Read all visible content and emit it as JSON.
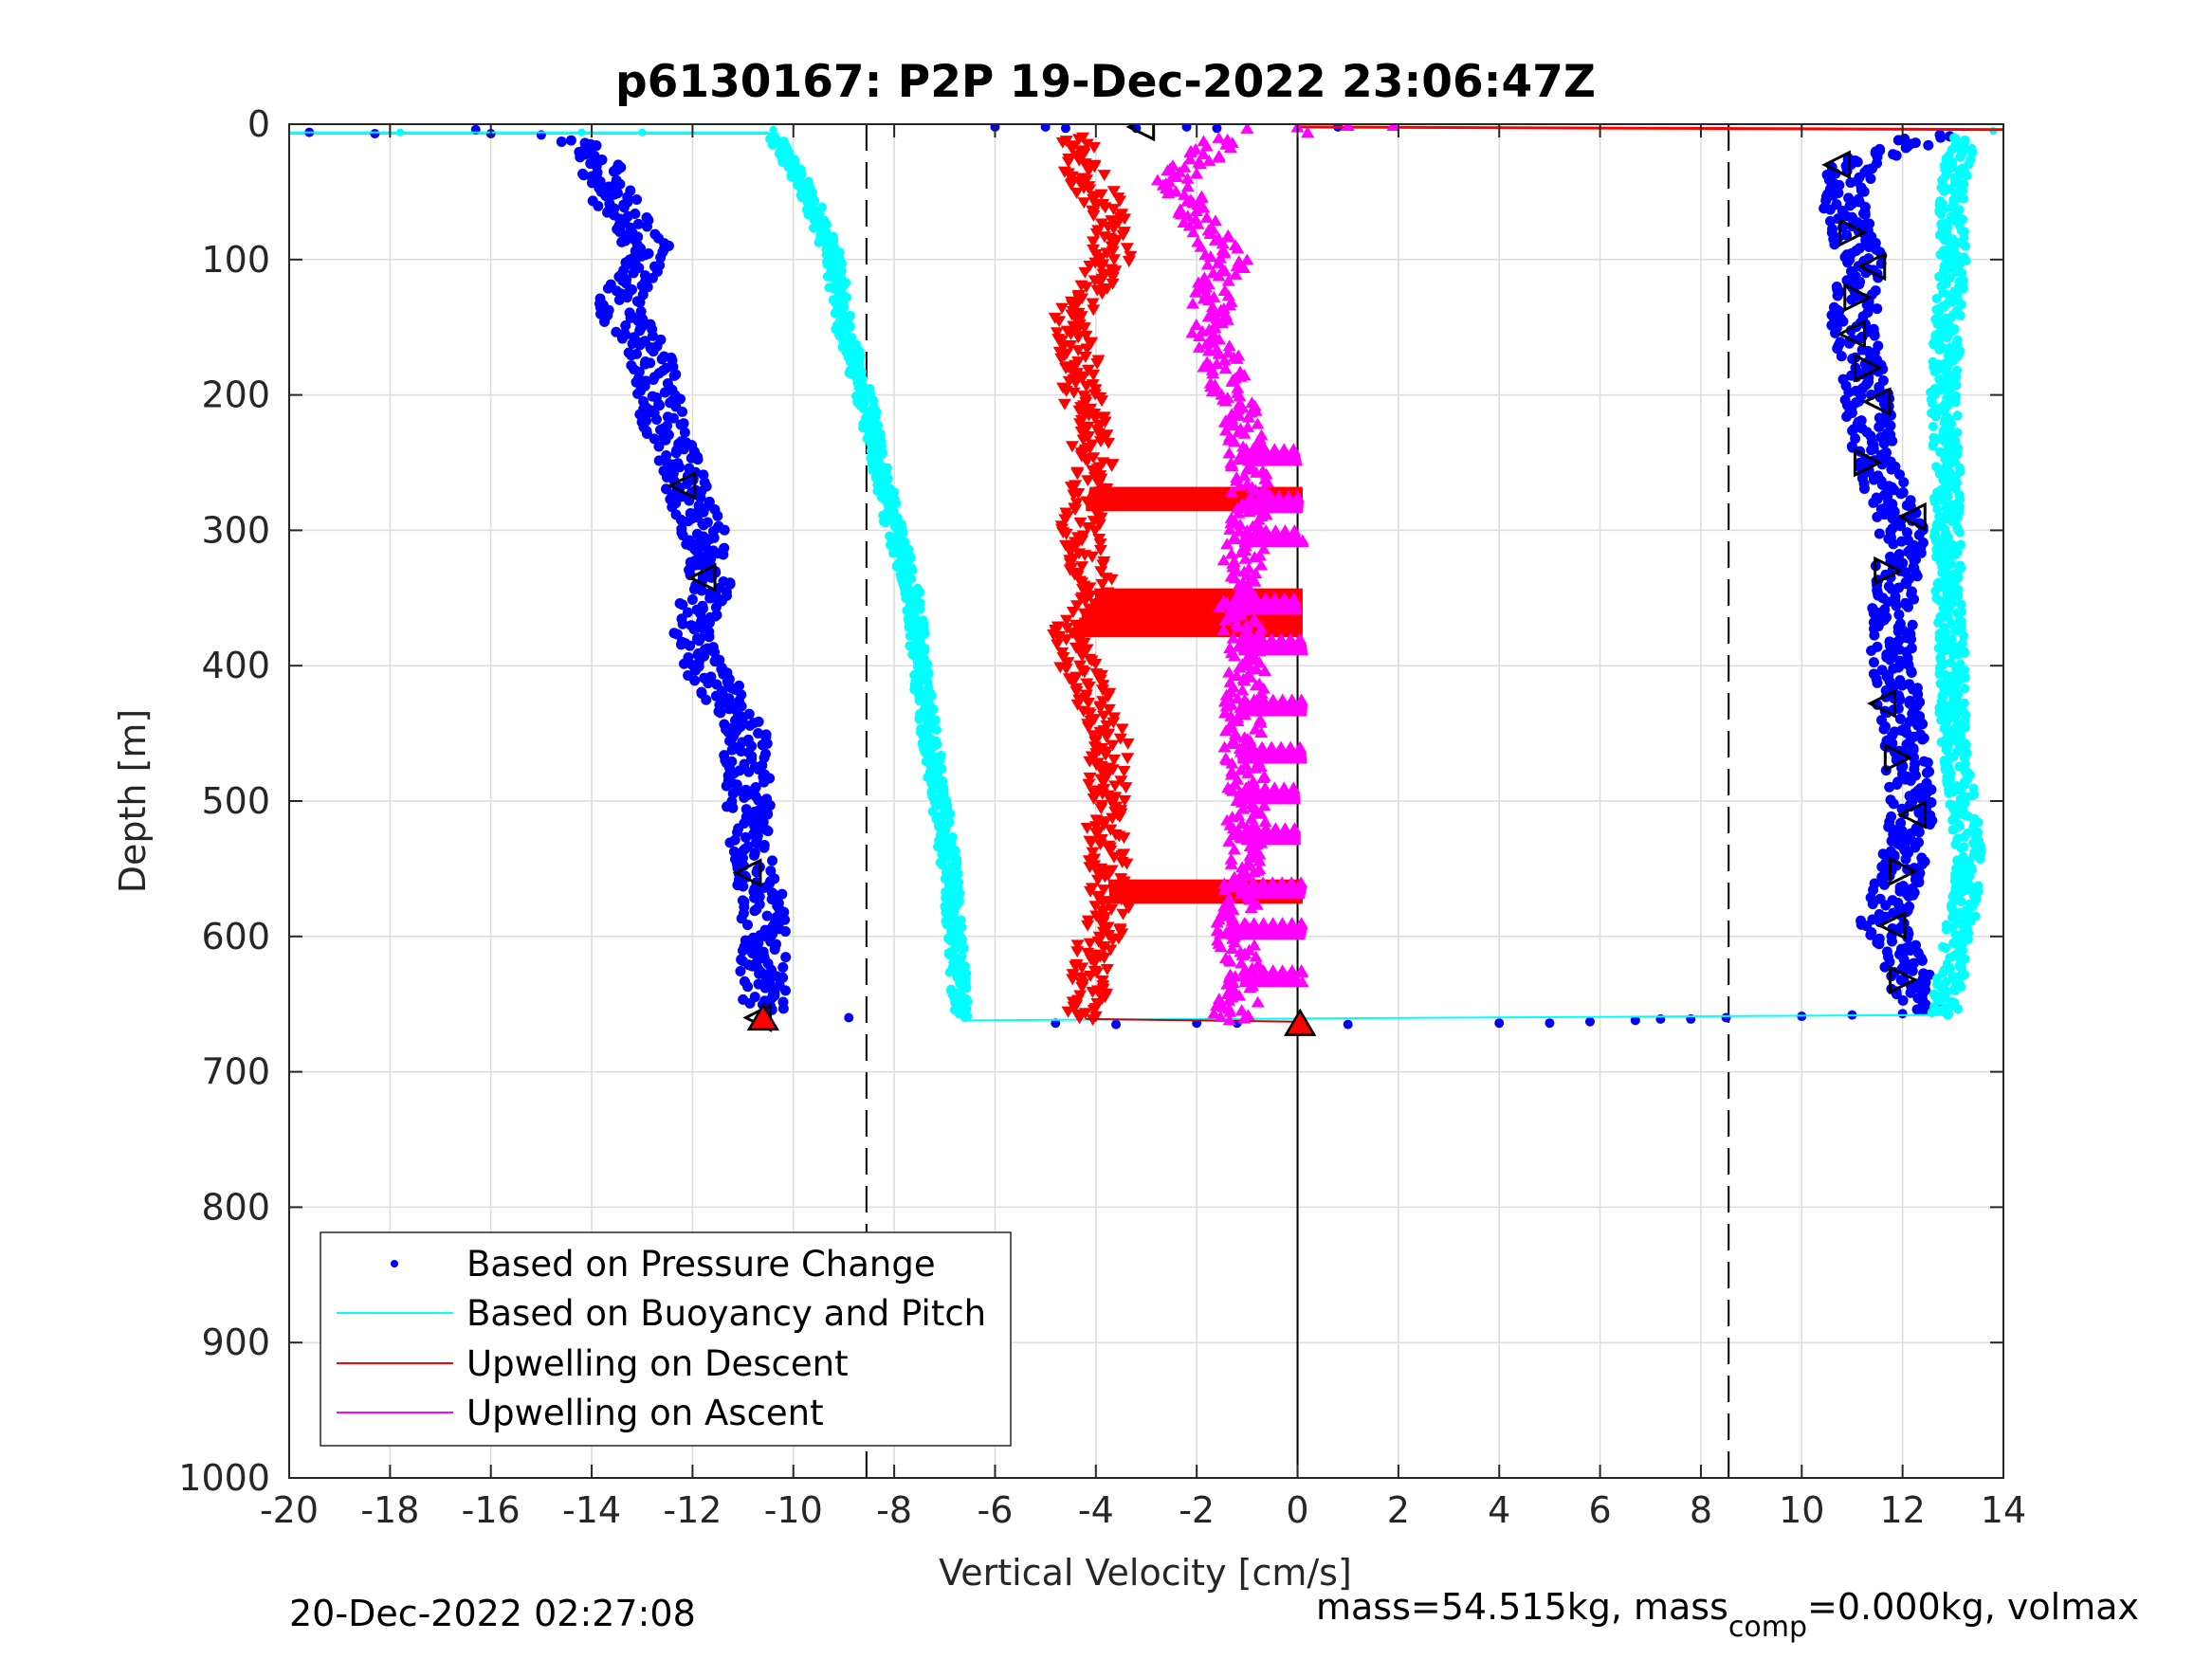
{
  "chart_data": {
    "type": "scatter",
    "title": "p6130167: P2P 19-Dec-2022 23:06:47Z",
    "xlabel": "Vertical Velocity [cm/s]",
    "ylabel": "Depth [m]",
    "xlim": [
      -20,
      14
    ],
    "ylim": [
      0,
      1000
    ],
    "y_reversed": true,
    "grid": true,
    "legend_position": "bottom-left",
    "x_ticks": [
      -20,
      -18,
      -16,
      -14,
      -12,
      -10,
      -8,
      -6,
      -4,
      -2,
      0,
      2,
      4,
      6,
      8,
      10,
      12,
      14
    ],
    "y_ticks": [
      0,
      100,
      200,
      300,
      400,
      500,
      600,
      700,
      800,
      900,
      1000
    ],
    "reference_lines": {
      "dashed_x": [
        -8.55,
        8.55
      ],
      "solid_x": 0
    },
    "series": [
      {
        "name": "Based on Pressure Change",
        "color": "#0000ff",
        "marker": "dot",
        "descent_profile": [
          [
            -10.3,
            5
          ],
          [
            -14.5,
            12
          ],
          [
            -13.8,
            30
          ],
          [
            -13.5,
            60
          ],
          [
            -12.8,
            95
          ],
          [
            -13.5,
            135
          ],
          [
            -12.8,
            175
          ],
          [
            -12.6,
            215
          ],
          [
            -12.2,
            260
          ],
          [
            -11.8,
            300
          ],
          [
            -11.6,
            335
          ],
          [
            -12.0,
            370
          ],
          [
            -11.8,
            400
          ],
          [
            -11.0,
            440
          ],
          [
            -10.9,
            490
          ],
          [
            -10.8,
            540
          ],
          [
            -10.6,
            580
          ],
          [
            -10.6,
            620
          ],
          [
            -10.6,
            660
          ]
        ],
        "ascent_profile": [
          [
            12.5,
            10
          ],
          [
            11.0,
            30
          ],
          [
            10.8,
            60
          ],
          [
            11.2,
            100
          ],
          [
            11.0,
            150
          ],
          [
            11.3,
            200
          ],
          [
            11.4,
            250
          ],
          [
            12.0,
            300
          ],
          [
            11.8,
            350
          ],
          [
            11.8,
            400
          ],
          [
            12.0,
            450
          ],
          [
            12.2,
            500
          ],
          [
            12.0,
            550
          ],
          [
            11.6,
            590
          ],
          [
            12.0,
            620
          ],
          [
            12.3,
            650
          ]
        ],
        "surface_points": [
          [
            -19.6,
            6
          ],
          [
            -18.3,
            7
          ],
          [
            -16.3,
            4
          ],
          [
            -16.0,
            7
          ],
          [
            -15.0,
            8
          ],
          [
            -6.0,
            2
          ],
          [
            -5.0,
            2
          ],
          [
            -4.6,
            3
          ],
          [
            -3.2,
            3
          ],
          [
            -2.2,
            2
          ],
          [
            -1.6,
            3
          ],
          [
            0.8,
            2
          ]
        ],
        "bottom_points": [
          [
            -8.9,
            660
          ],
          [
            -4.8,
            664
          ],
          [
            -3.6,
            665
          ],
          [
            -2.0,
            664
          ],
          [
            -1.2,
            664
          ],
          [
            1.0,
            665
          ],
          [
            4.0,
            664
          ],
          [
            5.0,
            664
          ],
          [
            5.8,
            663
          ],
          [
            6.7,
            662
          ],
          [
            7.2,
            661
          ],
          [
            7.8,
            661
          ],
          [
            8.5,
            660
          ],
          [
            10.0,
            659
          ],
          [
            11.0,
            658
          ],
          [
            12.0,
            657
          ]
        ]
      },
      {
        "name": "Based on Buoyancy and Pitch",
        "color": "#00ffff",
        "marker": "line+dot",
        "descent_profile": [
          [
            -20,
            6
          ],
          [
            -10.5,
            6
          ],
          [
            -10.2,
            20
          ],
          [
            -9.6,
            60
          ],
          [
            -9.2,
            100
          ],
          [
            -9.0,
            150
          ],
          [
            -8.6,
            200
          ],
          [
            -8.3,
            250
          ],
          [
            -8.0,
            300
          ],
          [
            -7.6,
            350
          ],
          [
            -7.5,
            400
          ],
          [
            -7.3,
            450
          ],
          [
            -7.1,
            500
          ],
          [
            -6.9,
            550
          ],
          [
            -6.8,
            600
          ],
          [
            -6.7,
            640
          ],
          [
            -6.6,
            662
          ]
        ],
        "ascent_profile": [
          [
            12.8,
            660
          ],
          [
            13.0,
            620
          ],
          [
            13.2,
            580
          ],
          [
            13.3,
            540
          ],
          [
            13.2,
            500
          ],
          [
            13.0,
            450
          ],
          [
            13.0,
            400
          ],
          [
            12.9,
            350
          ],
          [
            12.9,
            300
          ],
          [
            12.9,
            250
          ],
          [
            12.8,
            200
          ],
          [
            12.9,
            150
          ],
          [
            13.0,
            100
          ],
          [
            13.0,
            50
          ],
          [
            13.2,
            10
          ]
        ]
      },
      {
        "name": "Upwelling on Descent",
        "color": "#ff0000",
        "marker": "triangle-down",
        "profile": [
          [
            -4.4,
            10
          ],
          [
            -4.2,
            40
          ],
          [
            -3.6,
            70
          ],
          [
            -3.7,
            100
          ],
          [
            -4.5,
            140
          ],
          [
            -4.3,
            180
          ],
          [
            -4.2,
            220
          ],
          [
            -4.0,
            250
          ],
          [
            -4.3,
            300
          ],
          [
            -4.0,
            350
          ],
          [
            -4.6,
            380
          ],
          [
            -4.1,
            420
          ],
          [
            -3.7,
            460
          ],
          [
            -3.8,
            500
          ],
          [
            -3.8,
            540
          ],
          [
            -3.7,
            580
          ],
          [
            -4.1,
            620
          ],
          [
            -4.2,
            660
          ]
        ],
        "bands_depth": [
          270,
          345,
          560
        ]
      },
      {
        "name": "Upwelling on Ascent",
        "color": "#ff00ff",
        "marker": "triangle-up",
        "profile": [
          [
            -1.4,
            10
          ],
          [
            -2.5,
            40
          ],
          [
            -2.0,
            70
          ],
          [
            -1.4,
            100
          ],
          [
            -1.8,
            140
          ],
          [
            -1.5,
            180
          ],
          [
            -1.2,
            210
          ],
          [
            -0.9,
            260
          ],
          [
            -1.0,
            300
          ],
          [
            -1.2,
            350
          ],
          [
            -1.0,
            400
          ],
          [
            -1.1,
            450
          ],
          [
            -1.0,
            500
          ],
          [
            -1.0,
            550
          ],
          [
            -1.3,
            600
          ],
          [
            -1.0,
            630
          ],
          [
            -1.3,
            660
          ]
        ],
        "bands_depth": [
          240,
          275,
          300,
          350,
          380,
          425,
          460,
          490,
          520,
          560,
          590,
          625
        ]
      }
    ],
    "markers": {
      "open_descent": [
        [
          -3.1,
          2
        ],
        [
          -12.2,
          267
        ],
        [
          -11.8,
          335
        ],
        [
          -10.9,
          553
        ],
        [
          -10.7,
          660
        ]
      ],
      "open_ascent": [
        [
          10.7,
          30
        ],
        [
          11.0,
          80
        ],
        [
          11.4,
          105
        ],
        [
          11.1,
          128
        ],
        [
          11.0,
          155
        ],
        [
          11.3,
          180
        ],
        [
          11.5,
          205
        ],
        [
          11.3,
          250
        ],
        [
          12.2,
          290
        ],
        [
          11.7,
          330
        ],
        [
          11.6,
          428
        ],
        [
          11.9,
          468
        ],
        [
          12.2,
          510
        ],
        [
          12.0,
          552
        ],
        [
          11.8,
          592
        ],
        [
          12.0,
          632
        ]
      ],
      "red_filled": [
        [
          -10.6,
          661
        ],
        [
          0.05,
          665
        ]
      ]
    },
    "surface_line": {
      "x": [
        0,
        14
      ],
      "y": [
        2,
        4
      ],
      "color": "#ff0000"
    }
  },
  "footer": {
    "timestamp": "20-Dec-2022 02:27:08",
    "mass_left": "mass=54.515kg, mass",
    "mass_sub": "comp",
    "mass_right": "=0.000kg, volmax"
  }
}
